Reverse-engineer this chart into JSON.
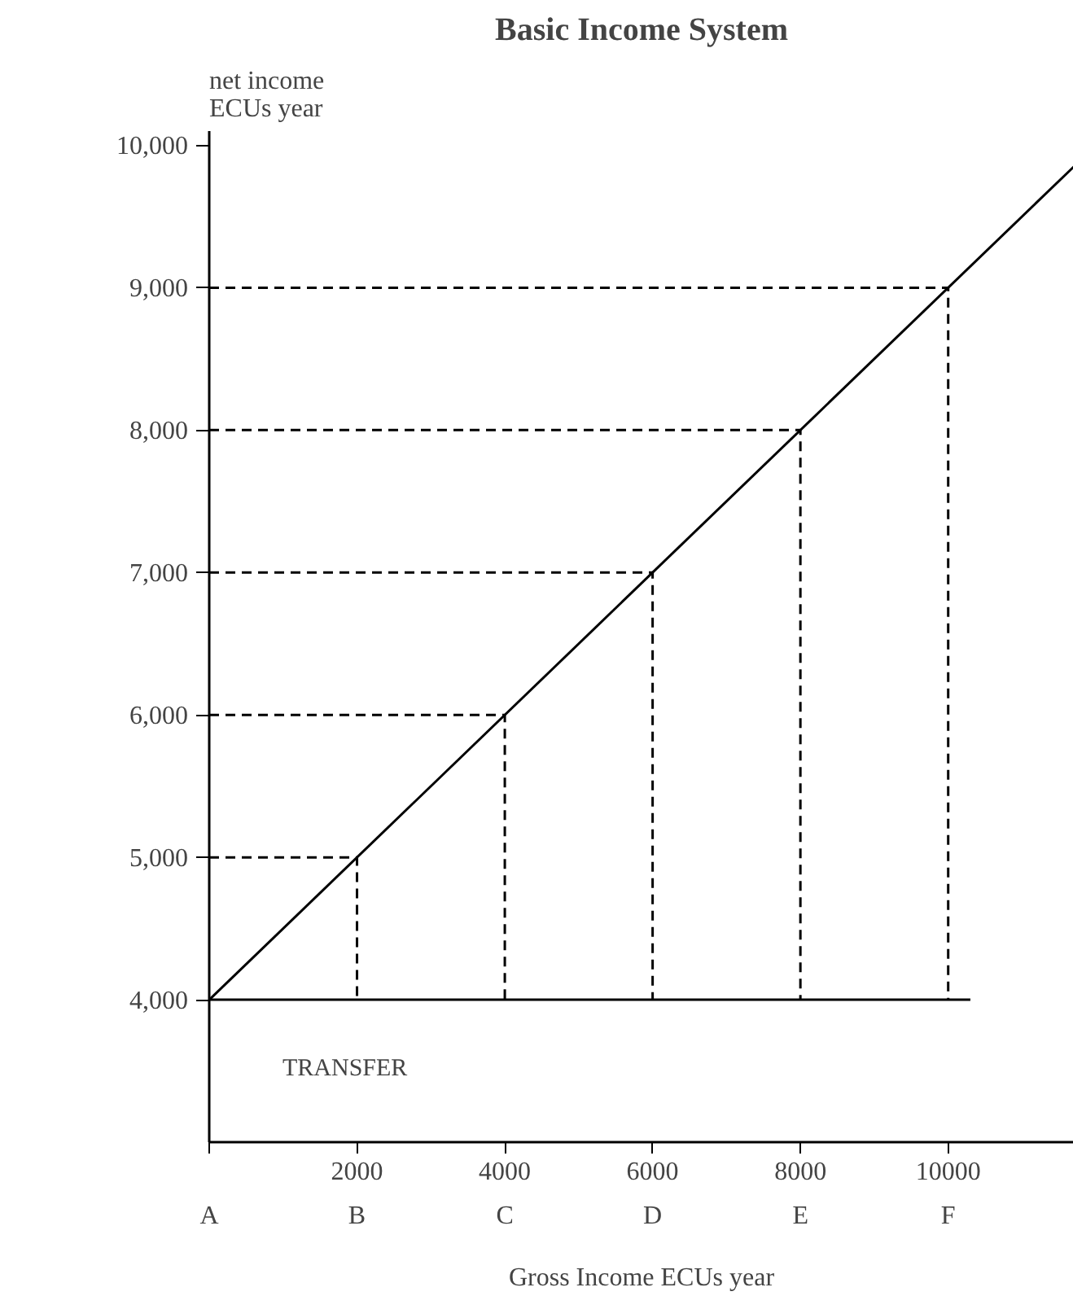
{
  "chart_data": {
    "type": "line",
    "title": "Basic Income System",
    "ylabel": "net income\nECUs year",
    "xlabel": "Gross Income ECUs year",
    "xlim": [
      0,
      11700
    ],
    "ylim": [
      3000,
      10100
    ],
    "xticks": [
      {
        "value": 0,
        "label": null
      },
      2000,
      4000,
      6000,
      8000,
      10000
    ],
    "yticks": [
      {
        "value": 4000,
        "label": "4,000"
      },
      {
        "value": 5000,
        "label": "5,000"
      },
      {
        "value": 6000,
        "label": "6,000"
      },
      {
        "value": 7000,
        "label": "7,000"
      },
      {
        "value": 8000,
        "label": "8,000"
      },
      {
        "value": 9000,
        "label": "9,000"
      },
      {
        "value": 10000,
        "label": "10,000"
      }
    ],
    "grid": false,
    "series": [
      {
        "color": "#000000",
        "x": [
          0,
          11700
        ],
        "values": [
          4000,
          9850
        ],
        "line_style": "solid"
      },
      {
        "color": "#000000",
        "x": [
          0,
          10300
        ],
        "values": [
          4000,
          4000
        ],
        "line_style": "solid"
      },
      {
        "color": "#000000",
        "x": [
          0,
          2000,
          2000
        ],
        "values": [
          5000,
          5000,
          4000
        ],
        "line_style": "dashed"
      },
      {
        "color": "#000000",
        "x": [
          0,
          4000,
          4000
        ],
        "values": [
          6000,
          6000,
          4000
        ],
        "line_style": "dashed"
      },
      {
        "color": "#000000",
        "x": [
          0,
          6000,
          6000
        ],
        "values": [
          7000,
          7000,
          4000
        ],
        "line_style": "dashed"
      },
      {
        "color": "#000000",
        "x": [
          0,
          8000,
          8000
        ],
        "values": [
          8000,
          8000,
          4000
        ],
        "line_style": "dashed"
      },
      {
        "color": "#000000",
        "x": [
          0,
          10000,
          10000
        ],
        "values": [
          9000,
          9000,
          4000
        ],
        "line_style": "dashed"
      }
    ],
    "annotations": [
      "TRANSFER",
      "A",
      "B",
      "C",
      "D",
      "E",
      "F"
    ]
  }
}
